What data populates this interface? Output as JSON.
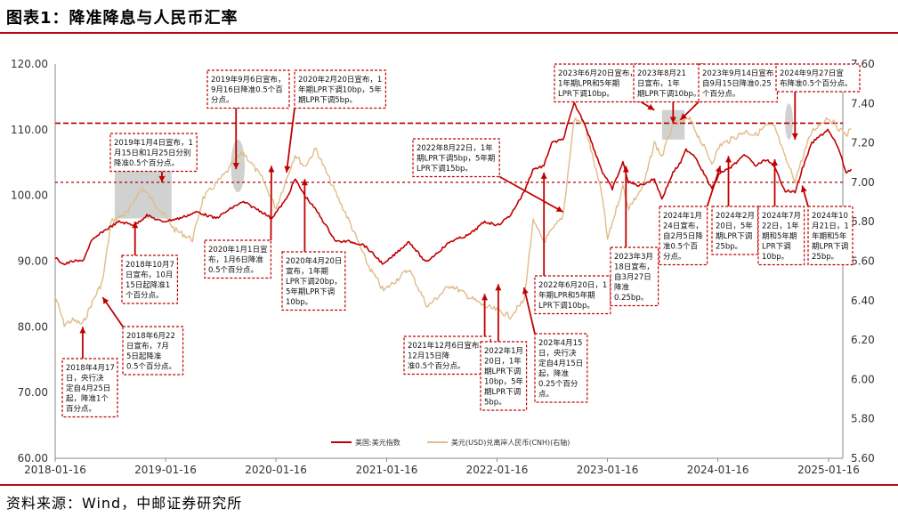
{
  "header": {
    "title": "图表1：降准降息与人民币汇率"
  },
  "footer": {
    "source": "资料来源：Wind，中邮证券研究所"
  },
  "colors": {
    "rule": "#b80b1a",
    "usd_index": "#c00000",
    "usdcnh": "#e0bc8a",
    "annotation": "#c00000",
    "highlight": "#bdbdbd"
  },
  "chart_data": {
    "type": "line",
    "title": "",
    "x_ticks": [
      "2018-01-16",
      "2019-01-16",
      "2020-01-16",
      "2021-01-16",
      "2022-01-16",
      "2023-01-16",
      "2024-01-16",
      "2025-01-16"
    ],
    "y_left_ticks": [
      "120.00",
      "110.00",
      "100.00",
      "90.00",
      "80.00",
      "70.00",
      "60.00"
    ],
    "y_right_ticks": [
      "7.60",
      "7.40",
      "7.20",
      "7.00",
      "6.80",
      "6.60",
      "6.40",
      "6.20",
      "6.00",
      "5.80",
      "5.60"
    ],
    "ylim_left": [
      60,
      120
    ],
    "ylim_right": [
      5.6,
      7.6
    ],
    "grid": false,
    "legend_position": "bottom",
    "reference_lines_left": [
      111.0,
      102.0
    ],
    "series": [
      {
        "name": "美国:美元指数",
        "axis": "left",
        "color": "#c00000",
        "points": [
          [
            "2018-01-16",
            90.5
          ],
          [
            "2018-02-15",
            89.5
          ],
          [
            "2018-03-15",
            90.0
          ],
          [
            "2018-04-17",
            90.0
          ],
          [
            "2018-05-15",
            93.0
          ],
          [
            "2018-06-22",
            94.5
          ],
          [
            "2018-08-15",
            96.0
          ],
          [
            "2018-10-07",
            95.5
          ],
          [
            "2018-11-15",
            97.0
          ],
          [
            "2019-01-04",
            96.0
          ],
          [
            "2019-03-01",
            96.5
          ],
          [
            "2019-05-01",
            97.5
          ],
          [
            "2019-07-01",
            96.5
          ],
          [
            "2019-09-06",
            98.5
          ],
          [
            "2019-10-01",
            99.0
          ],
          [
            "2019-12-01",
            97.5
          ],
          [
            "2020-01-01",
            96.5
          ],
          [
            "2020-02-20",
            99.5
          ],
          [
            "2020-03-19",
            102.5
          ],
          [
            "2020-04-20",
            100.0
          ],
          [
            "2020-06-01",
            97.5
          ],
          [
            "2020-08-01",
            93.0
          ],
          [
            "2020-09-15",
            93.0
          ],
          [
            "2020-11-01",
            92.5
          ],
          [
            "2021-01-06",
            89.5
          ],
          [
            "2021-03-31",
            93.0
          ],
          [
            "2021-05-25",
            89.8
          ],
          [
            "2021-08-15",
            93.0
          ],
          [
            "2021-10-15",
            94.0
          ],
          [
            "2021-12-06",
            96.0
          ],
          [
            "2022-01-20",
            95.5
          ],
          [
            "2022-03-01",
            97.0
          ],
          [
            "2022-04-15",
            100.5
          ],
          [
            "2022-05-15",
            104.0
          ],
          [
            "2022-06-20",
            104.5
          ],
          [
            "2022-07-15",
            108.0
          ],
          [
            "2022-08-22",
            108.5
          ],
          [
            "2022-09-28",
            114.0
          ],
          [
            "2022-11-01",
            111.0
          ],
          [
            "2022-12-31",
            103.5
          ],
          [
            "2023-02-01",
            101.0
          ],
          [
            "2023-03-08",
            105.0
          ],
          [
            "2023-03-27",
            102.0
          ],
          [
            "2023-05-01",
            101.5
          ],
          [
            "2023-06-20",
            102.5
          ],
          [
            "2023-07-15",
            99.5
          ],
          [
            "2023-08-21",
            103.5
          ],
          [
            "2023-09-15",
            105.0
          ],
          [
            "2023-10-03",
            107.0
          ],
          [
            "2023-11-01",
            106.0
          ],
          [
            "2023-12-27",
            101.0
          ],
          [
            "2024-01-24",
            103.5
          ],
          [
            "2024-02-20",
            104.0
          ],
          [
            "2024-04-16",
            106.2
          ],
          [
            "2024-05-20",
            104.5
          ],
          [
            "2024-06-25",
            105.5
          ],
          [
            "2024-07-22",
            104.2
          ],
          [
            "2024-08-26",
            100.7
          ],
          [
            "2024-09-27",
            100.5
          ],
          [
            "2024-10-21",
            104.0
          ],
          [
            "2024-11-22",
            108.0
          ],
          [
            "2025-01-13",
            110.0
          ],
          [
            "2025-02-15",
            107.5
          ],
          [
            "2025-03-15",
            103.5
          ],
          [
            "2025-04-01",
            104.0
          ]
        ]
      },
      {
        "name": "美元(USD)兑离岸人民币(CNH)(右轴)",
        "axis": "right",
        "color": "#e0bc8a",
        "points": [
          [
            "2018-01-16",
            6.42
          ],
          [
            "2018-02-15",
            6.28
          ],
          [
            "2018-03-15",
            6.3
          ],
          [
            "2018-04-17",
            6.28
          ],
          [
            "2018-05-15",
            6.38
          ],
          [
            "2018-06-22",
            6.5
          ],
          [
            "2018-07-20",
            6.8
          ],
          [
            "2018-09-15",
            6.85
          ],
          [
            "2018-10-07",
            6.92
          ],
          [
            "2018-10-31",
            6.97
          ],
          [
            "2019-01-04",
            6.85
          ],
          [
            "2019-02-15",
            6.76
          ],
          [
            "2019-04-15",
            6.71
          ],
          [
            "2019-05-20",
            6.92
          ],
          [
            "2019-08-05",
            7.05
          ],
          [
            "2019-09-06",
            7.12
          ],
          [
            "2019-10-01",
            7.15
          ],
          [
            "2019-12-01",
            7.02
          ],
          [
            "2020-01-16",
            6.87
          ],
          [
            "2020-02-20",
            7.02
          ],
          [
            "2020-03-19",
            7.14
          ],
          [
            "2020-04-20",
            7.08
          ],
          [
            "2020-05-27",
            7.17
          ],
          [
            "2020-07-15",
            7.0
          ],
          [
            "2020-09-15",
            6.8
          ],
          [
            "2020-11-15",
            6.58
          ],
          [
            "2021-01-06",
            6.45
          ],
          [
            "2021-03-31",
            6.56
          ],
          [
            "2021-05-31",
            6.37
          ],
          [
            "2021-08-15",
            6.48
          ],
          [
            "2021-10-15",
            6.42
          ],
          [
            "2021-12-06",
            6.37
          ],
          [
            "2022-01-20",
            6.35
          ],
          [
            "2022-02-28",
            6.32
          ],
          [
            "2022-04-15",
            6.4
          ],
          [
            "2022-05-15",
            6.8
          ],
          [
            "2022-06-20",
            6.7
          ],
          [
            "2022-08-22",
            6.83
          ],
          [
            "2022-09-28",
            7.32
          ],
          [
            "2022-11-01",
            7.3
          ],
          [
            "2022-12-31",
            6.92
          ],
          [
            "2023-01-16",
            6.71
          ],
          [
            "2023-03-08",
            6.98
          ],
          [
            "2023-03-27",
            6.87
          ],
          [
            "2023-05-15",
            6.98
          ],
          [
            "2023-06-20",
            7.2
          ],
          [
            "2023-07-15",
            7.13
          ],
          [
            "2023-08-21",
            7.3
          ],
          [
            "2023-09-15",
            7.31
          ],
          [
            "2023-10-15",
            7.32
          ],
          [
            "2023-12-27",
            7.1
          ],
          [
            "2024-01-24",
            7.19
          ],
          [
            "2024-02-20",
            7.21
          ],
          [
            "2024-04-16",
            7.26
          ],
          [
            "2024-05-20",
            7.24
          ],
          [
            "2024-06-25",
            7.29
          ],
          [
            "2024-07-22",
            7.28
          ],
          [
            "2024-08-26",
            7.12
          ],
          [
            "2024-09-27",
            7.01
          ],
          [
            "2024-10-21",
            7.12
          ],
          [
            "2024-11-22",
            7.26
          ],
          [
            "2025-01-13",
            7.33
          ],
          [
            "2025-02-15",
            7.28
          ],
          [
            "2025-03-15",
            7.24
          ],
          [
            "2025-04-01",
            7.27
          ]
        ]
      }
    ],
    "highlight_regions": [
      [
        "2018-08-01",
        "2019-02-05",
        96.5,
        104.5
      ],
      [
        "2019-08-20",
        "2019-10-05",
        100.5,
        108.5
      ],
      [
        "2023-07-15",
        "2023-09-28",
        108.5,
        113.0
      ],
      [
        "2024-08-25",
        "2024-09-20",
        108.5,
        114.0
      ]
    ],
    "annotations": [
      {
        "id": "a1",
        "lines": [
          "2018年4月17",
          "日，央行决",
          "定自4月25日",
          "起，降准1个",
          "百分点。"
        ],
        "pointer": [
          "2018-04-17",
          80.0
        ]
      },
      {
        "id": "a2",
        "lines": [
          "2018年6月22",
          "日宣布，7月",
          "5日起降准",
          "0.5个百分点。"
        ],
        "pointer": [
          "2018-06-22",
          84.5
        ]
      },
      {
        "id": "a3",
        "lines": [
          "2018年10月7",
          "日宣布，10月",
          "15日起降准1",
          "个百分点。"
        ],
        "pointer": [
          "2018-10-07",
          96.0
        ]
      },
      {
        "id": "a4",
        "lines": [
          "2019年1月4日宣布，1",
          "月15日和1月25日分别",
          "降准0.5个百分点。"
        ],
        "pointer": [
          "2019-01-04",
          102.0
        ]
      },
      {
        "id": "a5",
        "lines": [
          "2019年9月6日宣布，",
          "9月16日降准0.5个百",
          "分点。"
        ],
        "pointer": [
          "2019-09-06",
          104.0
        ]
      },
      {
        "id": "a6",
        "lines": [
          "2020年2月20日宣布，1",
          "年期LPR下调10bp，5年",
          "期LPR下调5bp。"
        ],
        "pointer": [
          "2020-02-20",
          103.5
        ]
      },
      {
        "id": "a7",
        "lines": [
          "2020年1月1日宣",
          "布，1月6日降准",
          "0.5个百分点。"
        ],
        "pointer": [
          "2020-01-01",
          104.5
        ]
      },
      {
        "id": "a8",
        "lines": [
          "2020年4月20日",
          "宣布，1年期",
          "LPR下调20bp，",
          "5年期LPR下调",
          "10bp。"
        ],
        "pointer": [
          "2020-04-20",
          102.5
        ]
      },
      {
        "id": "a9",
        "lines": [
          "2021年12月6日宣布，",
          "12月15日降",
          "准0.5个百分点。"
        ],
        "pointer": [
          "2021-12-06",
          85.0
        ]
      },
      {
        "id": "a10",
        "lines": [
          "2022年1月",
          "20日，1年",
          "期LPR下调",
          "10bp，5年",
          "期LPR下调",
          "5bp。"
        ],
        "pointer": [
          "2022-01-20",
          86.5
        ]
      },
      {
        "id": "a11",
        "lines": [
          "202年4月15",
          "日，央行决",
          "定自4月15日",
          "起，降准",
          "0.25个百分",
          "点。"
        ],
        "pointer": [
          "2022-04-15",
          86.0
        ]
      },
      {
        "id": "a12",
        "lines": [
          "2022年8月22日，1年",
          "期LPR下调5bp，5年期",
          "LPR下调15bp。"
        ],
        "pointer": [
          "2022-08-22",
          97.5
        ]
      },
      {
        "id": "a13",
        "lines": [
          "2022年6月20日，1",
          "年期LPR和5年期",
          "LPR下调10bp。"
        ],
        "pointer": [
          "2022-06-20",
          103.5
        ]
      },
      {
        "id": "a14",
        "lines": [
          "2023年6月20日宣布，",
          "1年期LPR和5年期",
          "LPR下调10bp。"
        ],
        "pointer": [
          "2023-06-20",
          113.0
        ]
      },
      {
        "id": "a15",
        "lines": [
          "2023年3月",
          "18日宣布，",
          "自3月27日",
          "降准",
          "0.25bp。"
        ],
        "pointer": [
          "2023-03-18",
          104.5
        ]
      },
      {
        "id": "a16",
        "lines": [
          "2023年8月21",
          "日宣布，1年",
          "期LPR下调10bp。"
        ],
        "pointer": [
          "2023-08-21",
          111.0
        ]
      },
      {
        "id": "a17",
        "lines": [
          "2023年9月14日宣布",
          "自9月15日降准0.25",
          "个百分点。"
        ],
        "pointer": [
          "2023-09-14",
          111.5
        ]
      },
      {
        "id": "a18",
        "lines": [
          "2024年1月",
          "24日宣布，",
          "自2月5日降",
          "准0.5个百",
          "分点。"
        ],
        "pointer": [
          "2024-01-24",
          104.5
        ]
      },
      {
        "id": "a19",
        "lines": [
          "2024年2月",
          "20日，5年",
          "期LPR下调",
          "25bp。"
        ],
        "pointer": [
          "2024-02-20",
          106.0
        ]
      },
      {
        "id": "a20",
        "lines": [
          "2024年7月",
          "22日，1年",
          "期和5年期",
          "LPR下调",
          "10bp。"
        ],
        "pointer": [
          "2024-07-22",
          105.5
        ]
      },
      {
        "id": "a21",
        "lines": [
          "2024年10",
          "月21日，1",
          "年期和5年",
          "期LPR下调",
          "25bp。"
        ],
        "pointer": [
          "2024-10-21",
          101.5
        ]
      },
      {
        "id": "a22",
        "lines": [
          "2024年9月27日宣",
          "布降准0.5个百分点。"
        ],
        "pointer": [
          "2024-09-27",
          108.5
        ]
      }
    ]
  }
}
